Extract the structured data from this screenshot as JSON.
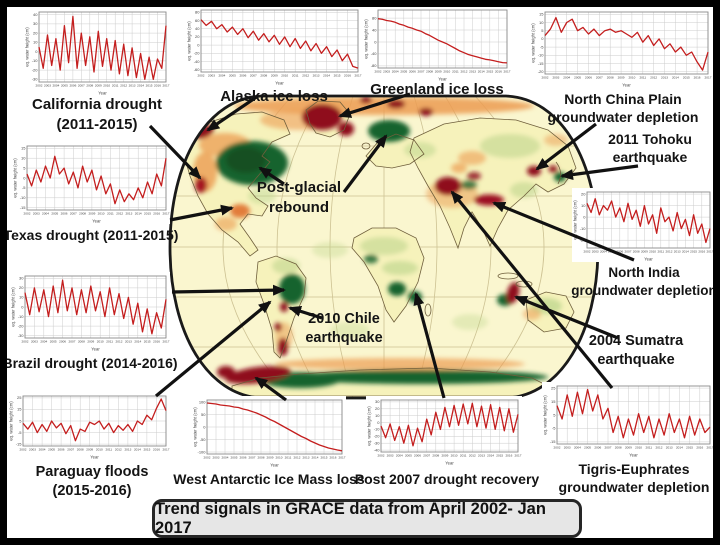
{
  "banner": {
    "text": "Trend signals in GRACE data from April 2002- Jan 2017"
  },
  "axis": {
    "y_label": "eq. water height (cm)",
    "x_label": "Year",
    "x_ticks": [
      2002,
      2003,
      2004,
      2005,
      2006,
      2007,
      2008,
      2009,
      2010,
      2011,
      2012,
      2013,
      2014,
      2015,
      2016,
      2017
    ]
  },
  "labels": {
    "california": [
      "California drought",
      "(2011-2015)"
    ],
    "alaska": [
      "Alaska ice loss"
    ],
    "greenland": [
      "Greenland ice loss"
    ],
    "north_china": [
      "North China Plain",
      "groundwater depletion"
    ],
    "tohoku": [
      "2011 Tohoku",
      "earthquake"
    ],
    "texas": [
      "Texas drought (2011-2015)"
    ],
    "post_glacial": [
      "Post-glacial",
      "rebound"
    ],
    "north_india": [
      "North India",
      "groundwater depletion"
    ],
    "brazil": [
      "Brazil drought (2014-2016)"
    ],
    "chile": [
      "2010 Chile",
      "earthquake"
    ],
    "sumatra": [
      "2004 Sumatra",
      "earthquake"
    ],
    "paraguay": [
      "Paraguay floods",
      "(2015-2016)"
    ],
    "west_antarctic": [
      "West Antarctic Ice Mass loss"
    ],
    "post_2007": [
      "Post 2007 drought recovery"
    ],
    "tigris": [
      "Tigris-Euphrates",
      "groundwater depletion"
    ]
  },
  "colors": {
    "series_line": "#c41e1e",
    "map_base": "#faf6cf",
    "land": "#f6f2bb",
    "dark_green": "#19632e",
    "dark_red": "#8f0e1d",
    "orange": "#ec9c52",
    "light_green": "#b9d489",
    "banner_bg": "#e6e6e6"
  },
  "chart_data": [
    {
      "id": "california-drought",
      "type": "line",
      "label": "California drought (2011-2015)",
      "x_start": 2002,
      "x_end": 2017,
      "ylim": [
        -30,
        40
      ],
      "yticks": [
        -30,
        -20,
        -10,
        0,
        10,
        20,
        30,
        40
      ],
      "values": [
        5,
        -18,
        18,
        -15,
        14,
        -20,
        28,
        -12,
        38,
        -18,
        20,
        -15,
        16,
        -22,
        22,
        -16,
        14,
        -20,
        12,
        -24,
        8,
        -26,
        4,
        -28,
        -2,
        -30,
        -6,
        -30,
        -8,
        -18,
        28
      ]
    },
    {
      "id": "alaska-ice-loss",
      "type": "line",
      "label": "Alaska ice loss",
      "x_start": 2002,
      "x_end": 2017,
      "ylim": [
        -60,
        80
      ],
      "yticks": [
        -60,
        -40,
        -20,
        0,
        20,
        40,
        60,
        80
      ],
      "values": [
        62,
        48,
        58,
        40,
        50,
        32,
        44,
        26,
        40,
        18,
        34,
        12,
        28,
        8,
        24,
        2,
        20,
        -4,
        16,
        -8,
        10,
        -14,
        4,
        -20,
        -4,
        -28,
        -12,
        -38,
        -22,
        -52,
        -56
      ]
    },
    {
      "id": "greenland-ice-loss",
      "type": "line",
      "label": "Greenland ice loss",
      "x_start": 2002,
      "x_end": 2017,
      "ylim": [
        -80,
        100
      ],
      "yticks": [
        -80,
        -40,
        0,
        40,
        80
      ],
      "values": [
        78,
        76,
        72,
        70,
        66,
        60,
        56,
        50,
        46,
        40,
        36,
        28,
        22,
        14,
        6,
        0,
        -6,
        -14,
        -22,
        -30,
        -36,
        -42,
        -46,
        -50,
        -54,
        -58,
        -60,
        -63,
        -66,
        -69,
        -70
      ]
    },
    {
      "id": "north-china-plain-groundwater",
      "type": "line",
      "label": "North China Plain groundwater depletion",
      "x_start": 2002,
      "x_end": 2017,
      "ylim": [
        -20,
        15
      ],
      "yticks": [
        -20,
        -15,
        -10,
        -5,
        0,
        5,
        10,
        15
      ],
      "values": [
        2,
        6,
        13,
        4,
        10,
        12,
        5,
        7,
        3,
        6,
        2,
        5,
        6,
        4,
        5,
        3,
        1,
        4,
        -2,
        2,
        -4,
        0,
        -6,
        -3,
        -8,
        -5,
        -10,
        -8,
        -14,
        -19,
        -8
      ]
    },
    {
      "id": "texas-drought",
      "type": "line",
      "label": "Texas drought (2011-2015)",
      "x_start": 2002,
      "x_end": 2017,
      "ylim": [
        -15,
        15
      ],
      "yticks": [
        -15,
        -10,
        -5,
        0,
        5,
        10,
        15
      ],
      "values": [
        2,
        -4,
        4,
        -2,
        6,
        0,
        11,
        2,
        5,
        -3,
        3,
        -5,
        6,
        -2,
        4,
        -6,
        1,
        -8,
        -3,
        -13,
        -6,
        -12,
        -8,
        -11,
        -5,
        -10,
        -2,
        -8,
        2,
        -4,
        10
      ]
    },
    {
      "id": "brazil-drought",
      "type": "line",
      "label": "Brazil drought (2014-2016)",
      "x_start": 2002,
      "x_end": 2017,
      "ylim": [
        -30,
        30
      ],
      "yticks": [
        -30,
        -20,
        -10,
        0,
        10,
        20,
        30
      ],
      "values": [
        15,
        -8,
        20,
        -5,
        18,
        -10,
        22,
        -6,
        28,
        -4,
        20,
        -8,
        18,
        -6,
        22,
        -4,
        16,
        -10,
        20,
        -8,
        14,
        -12,
        10,
        -18,
        4,
        -26,
        -2,
        -28,
        -6,
        -22,
        8
      ]
    },
    {
      "id": "paraguay-floods",
      "type": "line",
      "label": "Paraguay floods (2015-2016)",
      "x_start": 2002,
      "x_end": 2017,
      "ylim": [
        -15,
        25
      ],
      "yticks": [
        -15,
        -5,
        5,
        15,
        25
      ],
      "values": [
        3,
        -2,
        4,
        -5,
        2,
        -4,
        5,
        -1,
        3,
        -6,
        1,
        -12,
        -2,
        -4,
        4,
        2,
        5,
        -2,
        3,
        -5,
        1,
        -3,
        2,
        -4,
        5,
        2,
        10,
        6,
        16,
        24,
        14
      ]
    },
    {
      "id": "west-antarctic-ice-mass-loss",
      "type": "line",
      "label": "West Antarctic Ice Mass loss",
      "x_start": 2002,
      "x_end": 2017,
      "ylim": [
        -100,
        100
      ],
      "yticks": [
        -100,
        -50,
        0,
        50,
        100
      ],
      "values": [
        96,
        94,
        92,
        88,
        86,
        84,
        80,
        78,
        72,
        68,
        62,
        56,
        48,
        40,
        30,
        22,
        12,
        2,
        -8,
        -18,
        -28,
        -38,
        -46,
        -56,
        -64,
        -72,
        -78,
        -84,
        -88,
        -92,
        -95
      ]
    },
    {
      "id": "post-2007-drought-recovery",
      "type": "line",
      "label": "Post 2007 drought recovery",
      "x_start": 2002,
      "x_end": 2017,
      "ylim": [
        -40,
        30
      ],
      "yticks": [
        -40,
        -30,
        -20,
        -10,
        0,
        10,
        20,
        30
      ],
      "values": [
        -5,
        -22,
        -2,
        -26,
        -6,
        -30,
        -4,
        -34,
        -8,
        -28,
        5,
        -18,
        15,
        -10,
        22,
        -6,
        25,
        -4,
        27,
        -2,
        28,
        -6,
        24,
        -8,
        26,
        -10,
        22,
        -12,
        20,
        -14,
        12
      ]
    },
    {
      "id": "tigris-euphrates-groundwater",
      "type": "line",
      "label": "Tigris-Euphrates groundwater depletion",
      "x_start": 2002,
      "x_end": 2017,
      "ylim": [
        -15,
        25
      ],
      "yticks": [
        -15,
        -5,
        5,
        15,
        25
      ],
      "values": [
        12,
        2,
        20,
        4,
        22,
        6,
        24,
        8,
        20,
        2,
        10,
        -8,
        4,
        -12,
        2,
        -10,
        6,
        -8,
        4,
        -12,
        2,
        -10,
        6,
        -8,
        2,
        -12,
        4,
        -10,
        2,
        -8,
        -4
      ]
    },
    {
      "id": "north-india-groundwater",
      "type": "line",
      "label": "North India groundwater depletion",
      "x_start": 2002,
      "x_end": 2017,
      "ylim": [
        -25,
        20
      ],
      "yticks": [
        -20,
        -10,
        0,
        10,
        20
      ],
      "values": [
        12,
        4,
        16,
        2,
        10,
        6,
        14,
        0,
        8,
        -4,
        12,
        -2,
        6,
        -8,
        10,
        -6,
        2,
        -14,
        8,
        -4,
        0,
        -12,
        4,
        -10,
        -2,
        -16,
        2,
        -14,
        -6,
        -22,
        -10
      ]
    }
  ]
}
